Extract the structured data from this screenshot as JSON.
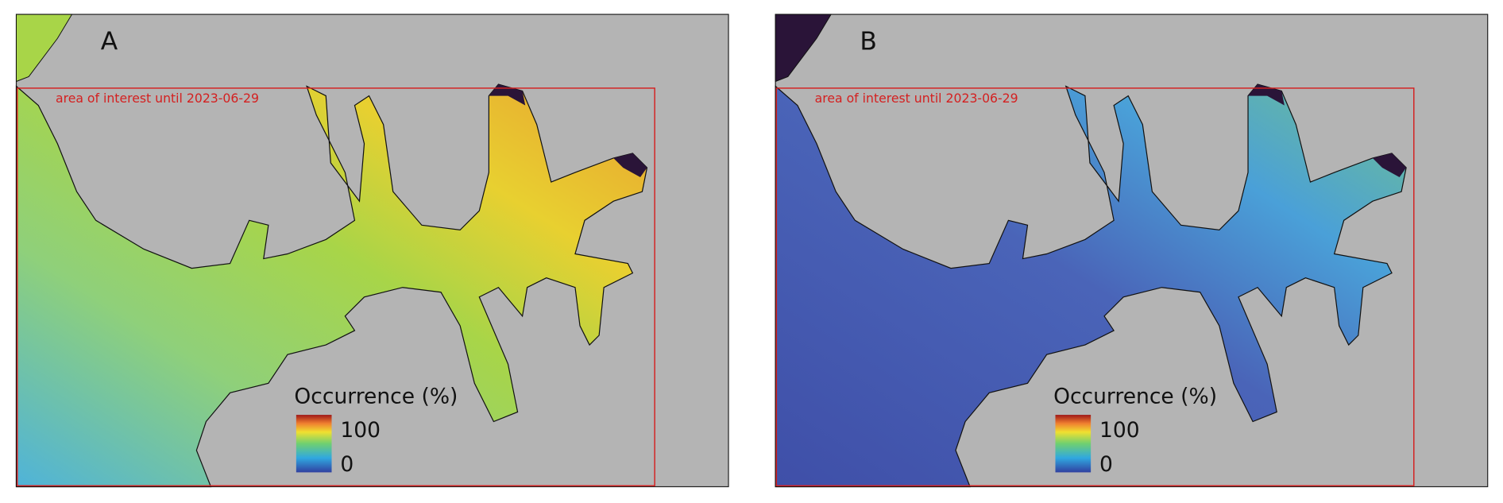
{
  "panels": [
    {
      "label": "A",
      "annotation": "area of interest until 2023-06-29",
      "legend": {
        "title": "Occurrence (%)",
        "max": "100",
        "min": "0"
      }
    },
    {
      "label": "B",
      "annotation": "area of interest until 2023-06-29",
      "legend": {
        "title": "Occurrence (%)",
        "max": "100",
        "min": "0"
      }
    }
  ]
}
